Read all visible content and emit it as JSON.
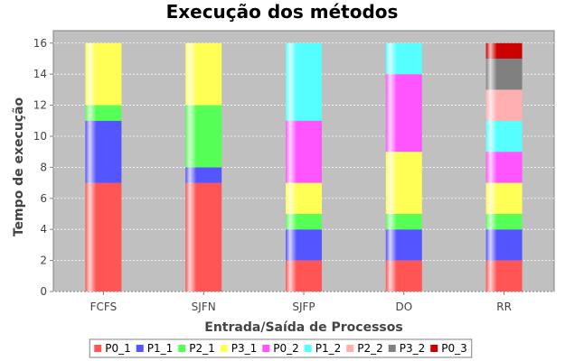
{
  "chart_data": {
    "type": "bar",
    "stacked": true,
    "title": "Execução dos métodos",
    "xlabel": "Entrada/Saída de Processos",
    "ylabel": "Tempo de execução",
    "ylim": [
      0,
      16.8
    ],
    "yticks": [
      0,
      2,
      4,
      6,
      8,
      10,
      12,
      14,
      16
    ],
    "grid": true,
    "legend_position": "bottom",
    "plot_background": "#c0c0c0",
    "categories": [
      "FCFS",
      "SJFN",
      "SJFP",
      "DO",
      "RR"
    ],
    "series": [
      {
        "name": "P0_1",
        "color": "#ff5555",
        "values": [
          7,
          7,
          2,
          2,
          2
        ]
      },
      {
        "name": "P1_1",
        "color": "#5555ff",
        "values": [
          4,
          1,
          2,
          2,
          2
        ]
      },
      {
        "name": "P2_1",
        "color": "#55ff55",
        "values": [
          1,
          4,
          1,
          1,
          1
        ]
      },
      {
        "name": "P3_1",
        "color": "#ffff55",
        "values": [
          4,
          4,
          2,
          4,
          2
        ]
      },
      {
        "name": "P0_2",
        "color": "#ff55ff",
        "values": [
          0,
          0,
          4,
          5,
          2
        ]
      },
      {
        "name": "P1_2",
        "color": "#55ffff",
        "values": [
          0,
          0,
          5,
          2,
          2
        ]
      },
      {
        "name": "P2_2",
        "color": "#ffafaf",
        "values": [
          0,
          0,
          0,
          0,
          2
        ]
      },
      {
        "name": "P3_2",
        "color": "#808080",
        "values": [
          0,
          0,
          0,
          0,
          2
        ]
      },
      {
        "name": "P0_3",
        "color": "#cc0000",
        "values": [
          0,
          0,
          0,
          0,
          1
        ]
      }
    ]
  }
}
